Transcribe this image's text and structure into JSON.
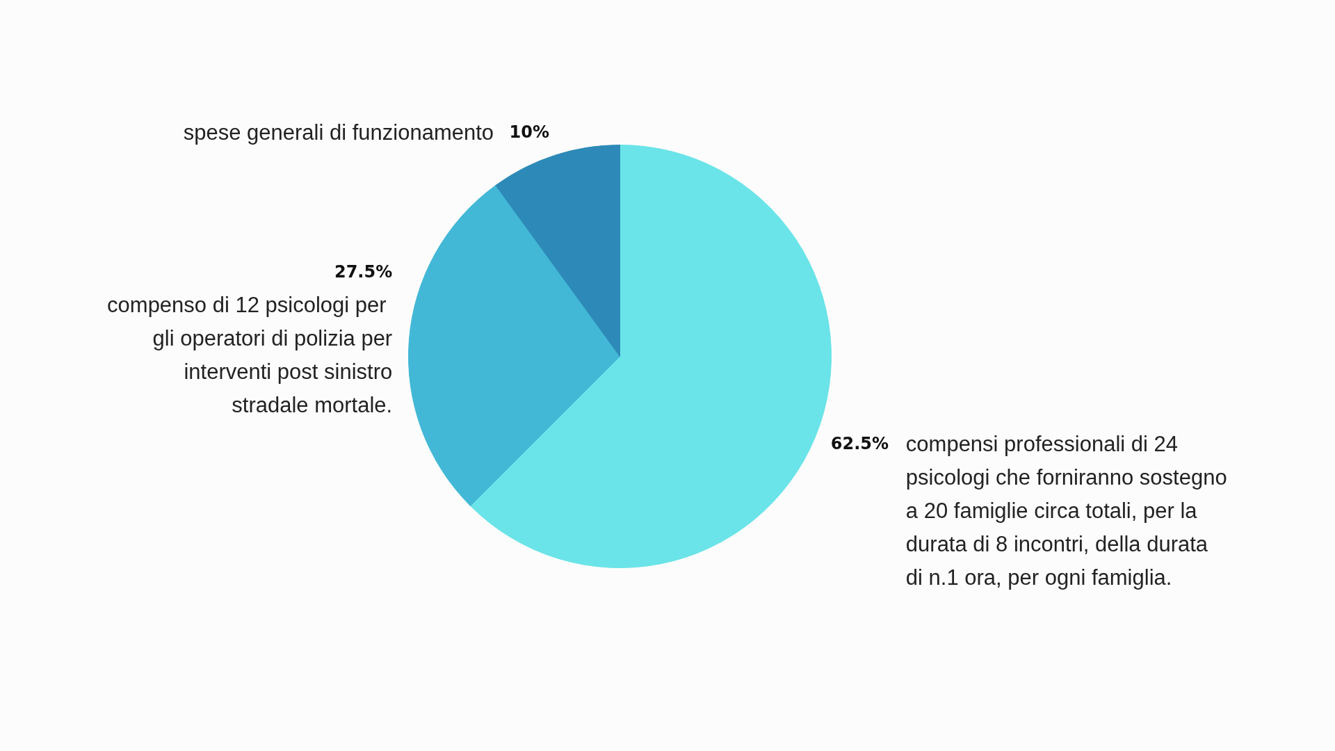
{
  "chart_data": {
    "type": "pie",
    "categories": [
      "compensi professionali di 24 psicologi che forniranno sostegno a 20 famiglie circa totali, per la durata di 8 incontri, della durata di n.1 ora, per ogni famiglia.",
      "compenso di 12 psicologi  per gli operatori di polizia per interventi post sinistro stradale mortale.",
      "spese generali di funzionamento"
    ],
    "values": [
      62.5,
      27.5,
      10
    ],
    "value_labels": [
      "62.5%",
      "27.5%",
      "10%"
    ],
    "colors": [
      "#6ae4e8",
      "#42b8d6",
      "#2d8ab8"
    ]
  }
}
